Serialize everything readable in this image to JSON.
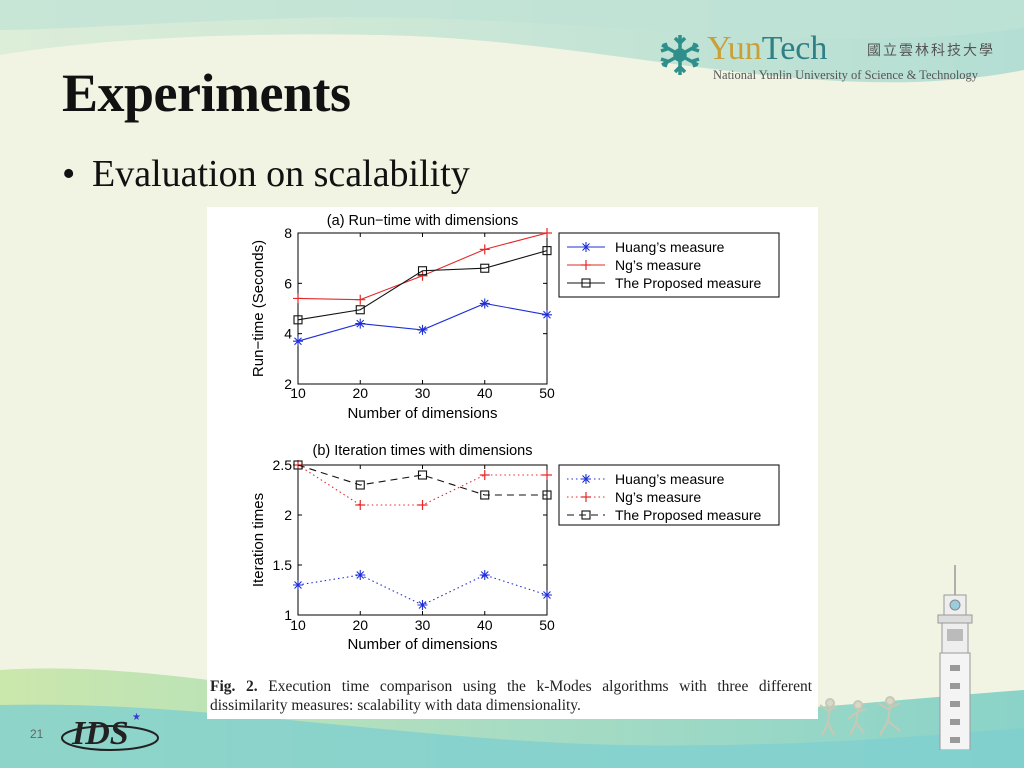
{
  "slide": {
    "title": "Experiments",
    "bullet": "Evaluation on scalability",
    "page_number": "21"
  },
  "logo": {
    "name_part1": "Yun",
    "name_part2": "Tech",
    "chinese": "國立雲林科技大學",
    "english": "National Yunlin University of Science & Technology"
  },
  "footer_logo": {
    "text": "IDS",
    "icon": "ids-lab-logo"
  },
  "caption": {
    "label": "Fig. 2.",
    "text": "Execution time comparison using the k-Modes algorithms with three different dissimilarity measures: scalability with data dimensionality."
  },
  "colors": {
    "huang": "#1f2fd6",
    "ng": "#e32a2a",
    "proposed": "#111111",
    "brand_gold": "#c9a038",
    "brand_teal": "#2f7f86"
  },
  "chart_data": [
    {
      "type": "line",
      "title": "(a) Run−time with dimensions",
      "xlabel": "Number of dimensions",
      "ylabel": "Run−time (Seconds)",
      "x": [
        10,
        20,
        30,
        40,
        50
      ],
      "xticks": [
        10,
        20,
        30,
        40,
        50
      ],
      "yticks": [
        2,
        4,
        6,
        8
      ],
      "xlim": [
        10,
        50
      ],
      "ylim": [
        2,
        8
      ],
      "legend": "top-right outside",
      "series": [
        {
          "name": "Huang’s measure",
          "values": [
            3.7,
            4.4,
            4.15,
            5.2,
            4.75
          ],
          "color": "#1f2fd6",
          "marker": "star",
          "line": "solid"
        },
        {
          "name": "Ng’s measure",
          "values": [
            5.4,
            5.35,
            6.3,
            7.35,
            8.0
          ],
          "color": "#e32a2a",
          "marker": "plus",
          "line": "solid"
        },
        {
          "name": "The Proposed measure",
          "values": [
            4.55,
            4.95,
            6.5,
            6.6,
            7.3
          ],
          "color": "#111111",
          "marker": "square",
          "line": "solid"
        }
      ]
    },
    {
      "type": "line",
      "title": "(b) Iteration times with dimensions",
      "xlabel": "Number of dimensions",
      "ylabel": "Iteration times",
      "x": [
        10,
        20,
        30,
        40,
        50
      ],
      "xticks": [
        10,
        20,
        30,
        40,
        50
      ],
      "yticks": [
        1,
        1.5,
        2,
        2.5
      ],
      "xlim": [
        10,
        50
      ],
      "ylim": [
        1,
        2.5
      ],
      "legend": "top-right outside",
      "series": [
        {
          "name": "Huang’s measure",
          "values": [
            1.3,
            1.4,
            1.1,
            1.4,
            1.2
          ],
          "color": "#1f2fd6",
          "marker": "star",
          "line": "dotted"
        },
        {
          "name": "Ng’s measure",
          "values": [
            2.5,
            2.1,
            2.1,
            2.4,
            2.4
          ],
          "color": "#e32a2a",
          "marker": "plus",
          "line": "dotted"
        },
        {
          "name": "The Proposed measure",
          "values": [
            2.5,
            2.3,
            2.4,
            2.2,
            2.2
          ],
          "color": "#111111",
          "marker": "square",
          "line": "dashed"
        }
      ]
    }
  ]
}
